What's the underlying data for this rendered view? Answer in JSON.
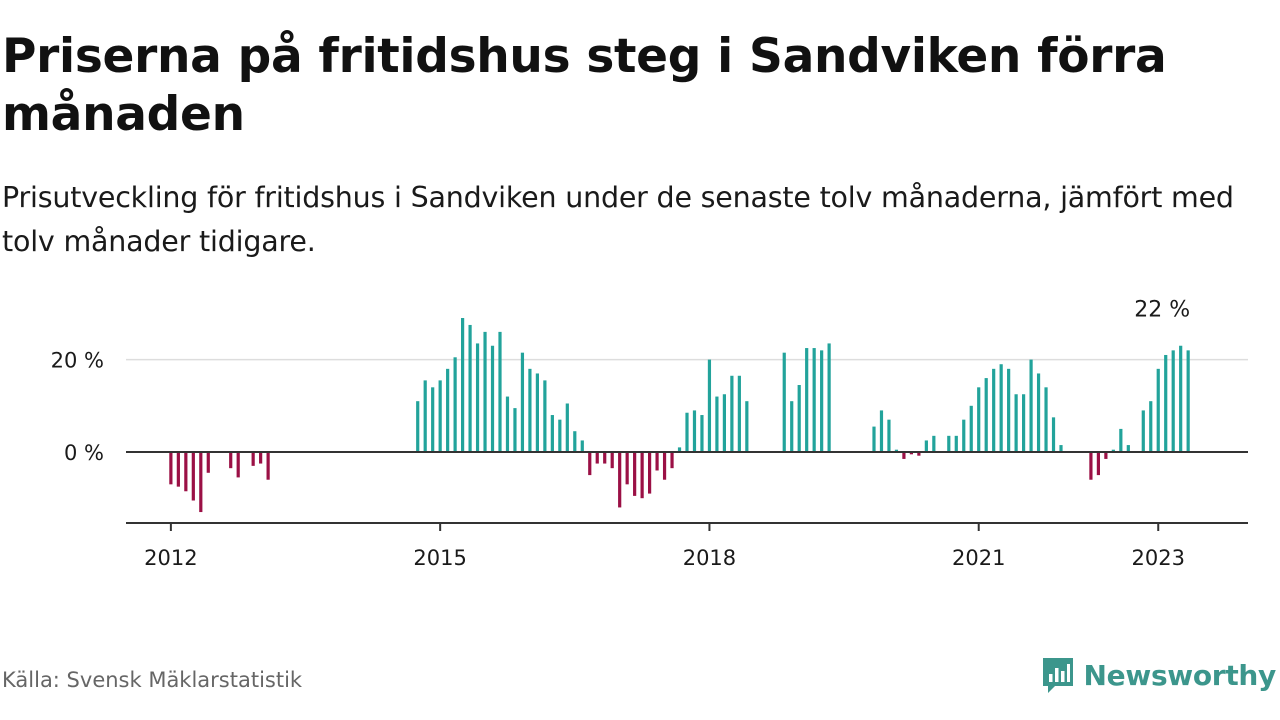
{
  "title": "Priserna på fritidshus steg i Sandviken förra månaden",
  "subtitle": "Prisutveckling för fritidshus i Sandviken under de senaste tolv månaderna, jämfört med tolv månader tidigare.",
  "source": "Källa: Svensk Mäklarstatistik",
  "brand": {
    "name": "Newsworthy",
    "icon": "newsworthy-logo-icon"
  },
  "colors": {
    "positive": "#22a39b",
    "negative": "#9b1045",
    "grid": "#dddddd",
    "axis": "#333333",
    "brand": "#3c968c"
  },
  "chart_data": {
    "type": "bar",
    "x_unit": "month",
    "ylim": [
      -15,
      30
    ],
    "xlim": [
      "2011-07",
      "2024-01"
    ],
    "y_ticks": [
      {
        "value": 0,
        "label": "0 %"
      },
      {
        "value": 20,
        "label": "20 %"
      }
    ],
    "x_ticks": [
      {
        "date": "2012-01",
        "label": "2012"
      },
      {
        "date": "2015-01",
        "label": "2015"
      },
      {
        "date": "2018-01",
        "label": "2018"
      },
      {
        "date": "2021-01",
        "label": "2021"
      },
      {
        "date": "2023-01",
        "label": "2023"
      }
    ],
    "grid": "horizontal",
    "annotation": {
      "date": "2023-01",
      "value": 22,
      "label": "22 %"
    },
    "series": [
      {
        "points": [
          {
            "date": "2012-01",
            "value": -7
          },
          {
            "date": "2012-02",
            "value": -7.5
          },
          {
            "date": "2012-03",
            "value": -8.5
          },
          {
            "date": "2012-04",
            "value": -10.5
          },
          {
            "date": "2012-05",
            "value": -13
          },
          {
            "date": "2012-06",
            "value": -4.5
          },
          {
            "date": "2012-09",
            "value": -3.5
          },
          {
            "date": "2012-10",
            "value": -5.5
          },
          {
            "date": "2012-12",
            "value": -3
          },
          {
            "date": "2013-01",
            "value": -2.5
          },
          {
            "date": "2013-02",
            "value": -6
          },
          {
            "date": "2014-10",
            "value": 11
          },
          {
            "date": "2014-11",
            "value": 15.5
          },
          {
            "date": "2014-12",
            "value": 14
          },
          {
            "date": "2015-01",
            "value": 15.5
          },
          {
            "date": "2015-02",
            "value": 18
          },
          {
            "date": "2015-03",
            "value": 20.5
          },
          {
            "date": "2015-04",
            "value": 29
          },
          {
            "date": "2015-05",
            "value": 27.5
          },
          {
            "date": "2015-06",
            "value": 23.5
          },
          {
            "date": "2015-07",
            "value": 26
          },
          {
            "date": "2015-08",
            "value": 23
          },
          {
            "date": "2015-09",
            "value": 26
          },
          {
            "date": "2015-10",
            "value": 12
          },
          {
            "date": "2015-11",
            "value": 9.5
          },
          {
            "date": "2015-12",
            "value": 21.5
          },
          {
            "date": "2016-01",
            "value": 18
          },
          {
            "date": "2016-02",
            "value": 17
          },
          {
            "date": "2016-03",
            "value": 15.5
          },
          {
            "date": "2016-04",
            "value": 8
          },
          {
            "date": "2016-05",
            "value": 7
          },
          {
            "date": "2016-06",
            "value": 10.5
          },
          {
            "date": "2016-07",
            "value": 4.5
          },
          {
            "date": "2016-08",
            "value": 2.5
          },
          {
            "date": "2016-09",
            "value": -5
          },
          {
            "date": "2016-10",
            "value": -2.5
          },
          {
            "date": "2016-11",
            "value": -2.5
          },
          {
            "date": "2016-12",
            "value": -3.5
          },
          {
            "date": "2017-01",
            "value": -12
          },
          {
            "date": "2017-02",
            "value": -7
          },
          {
            "date": "2017-03",
            "value": -9.5
          },
          {
            "date": "2017-04",
            "value": -10
          },
          {
            "date": "2017-05",
            "value": -9
          },
          {
            "date": "2017-06",
            "value": -4
          },
          {
            "date": "2017-07",
            "value": -6
          },
          {
            "date": "2017-08",
            "value": -3.5
          },
          {
            "date": "2017-09",
            "value": 1
          },
          {
            "date": "2017-10",
            "value": 8.5
          },
          {
            "date": "2017-11",
            "value": 9
          },
          {
            "date": "2017-12",
            "value": 8
          },
          {
            "date": "2018-01",
            "value": 20
          },
          {
            "date": "2018-02",
            "value": 12
          },
          {
            "date": "2018-03",
            "value": 12.5
          },
          {
            "date": "2018-04",
            "value": 16.5
          },
          {
            "date": "2018-05",
            "value": 16.5
          },
          {
            "date": "2018-06",
            "value": 11
          },
          {
            "date": "2018-11",
            "value": 21.5
          },
          {
            "date": "2018-12",
            "value": 11
          },
          {
            "date": "2019-01",
            "value": 14.5
          },
          {
            "date": "2019-02",
            "value": 22.5
          },
          {
            "date": "2019-03",
            "value": 22.5
          },
          {
            "date": "2019-04",
            "value": 22
          },
          {
            "date": "2019-05",
            "value": 23.5
          },
          {
            "date": "2019-11",
            "value": 5.5
          },
          {
            "date": "2019-12",
            "value": 9
          },
          {
            "date": "2020-01",
            "value": 7
          },
          {
            "date": "2020-02",
            "value": 0.5
          },
          {
            "date": "2020-03",
            "value": -1.5
          },
          {
            "date": "2020-04",
            "value": -0.5
          },
          {
            "date": "2020-05",
            "value": -0.8
          },
          {
            "date": "2020-06",
            "value": 2.5
          },
          {
            "date": "2020-07",
            "value": 3.5
          },
          {
            "date": "2020-09",
            "value": 3.5
          },
          {
            "date": "2020-10",
            "value": 3.5
          },
          {
            "date": "2020-11",
            "value": 7
          },
          {
            "date": "2020-12",
            "value": 10
          },
          {
            "date": "2021-01",
            "value": 14
          },
          {
            "date": "2021-02",
            "value": 16
          },
          {
            "date": "2021-03",
            "value": 18
          },
          {
            "date": "2021-04",
            "value": 19
          },
          {
            "date": "2021-05",
            "value": 18
          },
          {
            "date": "2021-06",
            "value": 12.5
          },
          {
            "date": "2021-07",
            "value": 12.5
          },
          {
            "date": "2021-08",
            "value": 20
          },
          {
            "date": "2021-09",
            "value": 17
          },
          {
            "date": "2021-10",
            "value": 14
          },
          {
            "date": "2021-11",
            "value": 7.5
          },
          {
            "date": "2021-12",
            "value": 1.5
          },
          {
            "date": "2022-04",
            "value": -6
          },
          {
            "date": "2022-05",
            "value": -5
          },
          {
            "date": "2022-06",
            "value": -1.5
          },
          {
            "date": "2022-07",
            "value": 0.5
          },
          {
            "date": "2022-08",
            "value": 5
          },
          {
            "date": "2022-09",
            "value": 1.5
          },
          {
            "date": "2022-11",
            "value": 9
          },
          {
            "date": "2022-12",
            "value": 11
          },
          {
            "date": "2023-01",
            "value": 18
          },
          {
            "date": "2023-02",
            "value": 21
          },
          {
            "date": "2023-03",
            "value": 22
          },
          {
            "date": "2023-04",
            "value": 23
          },
          {
            "date": "2023-05",
            "value": 22
          }
        ]
      }
    ]
  }
}
